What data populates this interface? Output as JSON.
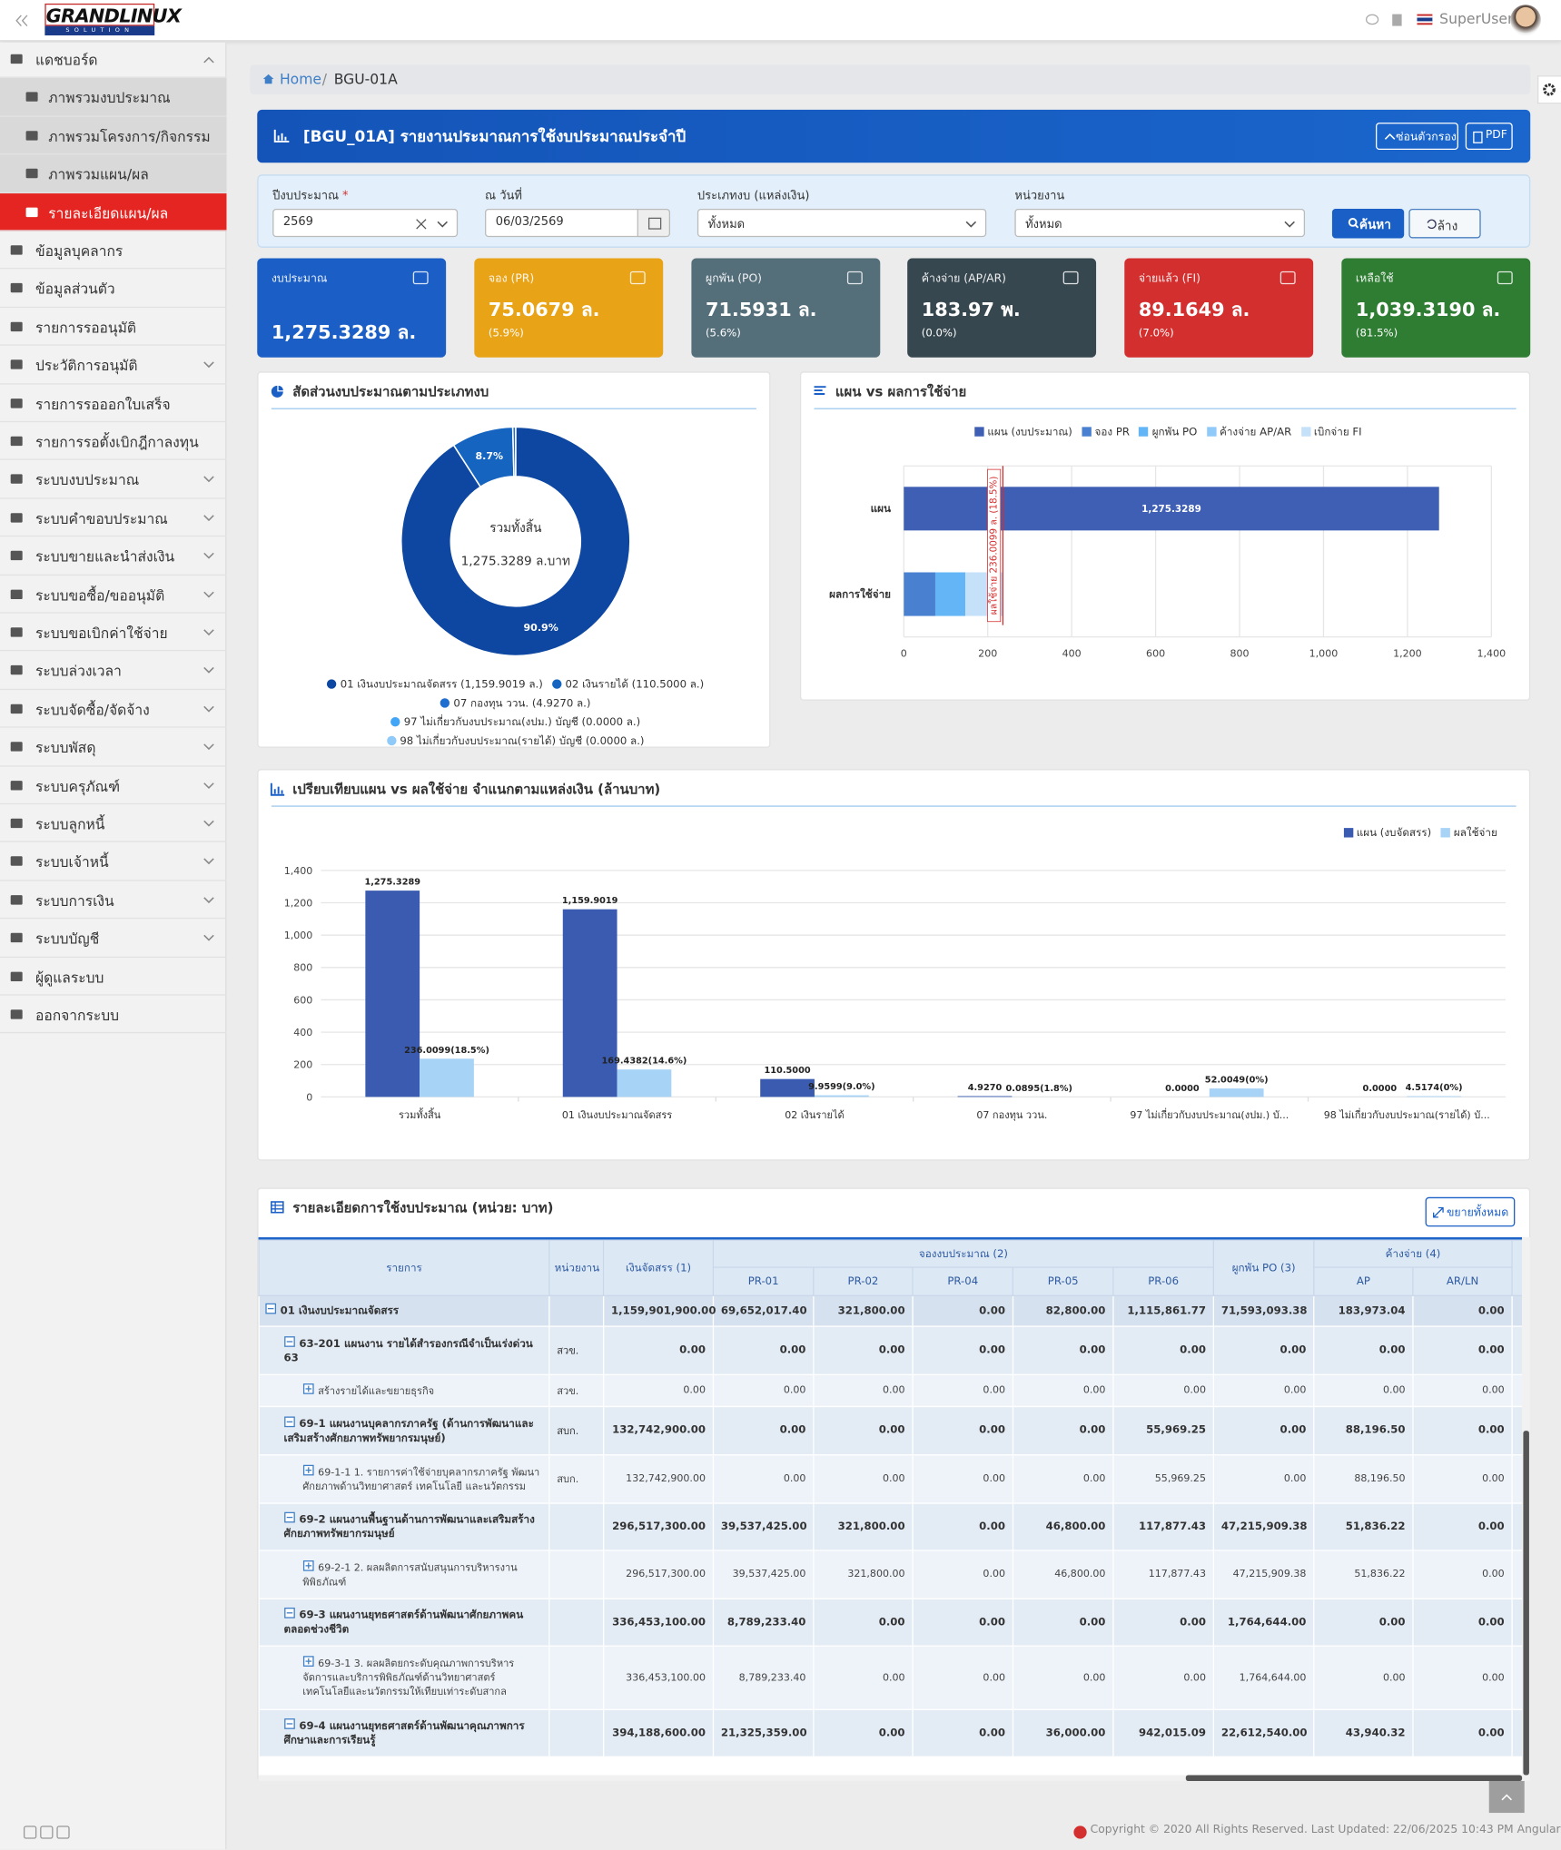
{
  "header": {
    "logo": "GRANDLINUX",
    "logo_sub": "SOLUTION",
    "user": "SuperUser"
  },
  "sidebar": {
    "menu": [
      {
        "label": "แดชบอร์ด",
        "expanded": true,
        "children": [
          {
            "label": "ภาพรวมงบประมาณ"
          },
          {
            "label": "ภาพรวมโครงการ/กิจกรรม"
          },
          {
            "label": "ภาพรวมแผน/ผล"
          },
          {
            "label": "รายละเอียดแผน/ผล",
            "active": true
          }
        ]
      },
      {
        "label": "ข้อมูลบุคลากร"
      },
      {
        "label": "ข้อมูลส่วนตัว"
      },
      {
        "label": "รายการรออนุมัติ"
      },
      {
        "label": "ประวัติการอนุมัติ",
        "submenu": true
      },
      {
        "label": "รายการรอออกใบเสร็จ"
      },
      {
        "label": "รายการรอตั้งเบิกฎีกาลงทุน"
      },
      {
        "label": "ระบบงบประมาณ",
        "submenu": true
      },
      {
        "label": "ระบบคำขอบประมาณ",
        "submenu": true
      },
      {
        "label": "ระบบขายและนำส่งเงิน",
        "submenu": true
      },
      {
        "label": "ระบบขอซื้อ/ขออนุมัติ",
        "submenu": true
      },
      {
        "label": "ระบบขอเบิกค่าใช้จ่าย",
        "submenu": true
      },
      {
        "label": "ระบบล่วงเวลา",
        "submenu": true
      },
      {
        "label": "ระบบจัดซื้อ/จัดจ้าง",
        "submenu": true
      },
      {
        "label": "ระบบพัสดุ",
        "submenu": true
      },
      {
        "label": "ระบบครุภัณฑ์",
        "submenu": true
      },
      {
        "label": "ระบบลูกหนี้",
        "submenu": true
      },
      {
        "label": "ระบบเจ้าหนี้",
        "submenu": true
      },
      {
        "label": "ระบบการเงิน",
        "submenu": true
      },
      {
        "label": "ระบบบัญชี",
        "submenu": true
      },
      {
        "label": "ผู้ดูแลระบบ"
      },
      {
        "label": "ออกจากระบบ"
      }
    ]
  },
  "breadcrumb": {
    "home": "Home",
    "separator": "/",
    "current": "BGU-01A"
  },
  "page_title": "[BGU_01A] รายงานประมาณการใช้งบประมาณประจำปี",
  "buttons": {
    "hide_filter": "ซ่อนตัวกรอง",
    "pdf": "PDF",
    "search": "ค้นหา",
    "clear": "ล้าง",
    "expand_all": "ขยายทั้งหมด"
  },
  "filters": [
    {
      "label": "ปีงบประมาณ",
      "required": "*",
      "value": "2569"
    },
    {
      "label": "ณ วันที่",
      "value": "06/03/2569"
    },
    {
      "label": "ประเภทงบ (แหล่งเงิน)",
      "value": "ทั้งหมด"
    },
    {
      "label": "หน่วยงาน",
      "value": "ทั้งหมด"
    }
  ],
  "kpis": [
    {
      "label": "งบประมาณ",
      "value": "1,275.3289 ล.",
      "color": "#1b5fc6"
    },
    {
      "label": "จอง (PR)",
      "value": "75.0679 ล.",
      "percent": "(5.9%)",
      "color": "#e8a317"
    },
    {
      "label": "ผูกพัน (PO)",
      "value": "71.5931 ล.",
      "percent": "(5.6%)",
      "color": "#546e7a"
    },
    {
      "label": "ค้างจ่าย (AP/AR)",
      "value": "183.97 พ.",
      "percent": "(0.0%)",
      "color": "#37474f"
    },
    {
      "label": "จ่ายแล้ว (FI)",
      "value": "89.1649 ล.",
      "percent": "(7.0%)",
      "color": "#d32f2f"
    },
    {
      "label": "เหลือใช้",
      "value": "1,039.3190 ล.",
      "percent": "(81.5%)",
      "color": "#2e7d32"
    }
  ],
  "chart_data": [
    {
      "type": "pie",
      "title": "สัดส่วนงบประมาณตามประเภทงบ",
      "center_label": "รวมทั้งสิ้น",
      "center_value": "1,275.3289 ล.บาท",
      "labels": [
        "01 เงินงบประมาณจัดสรร (1,159.9019 ล.)",
        "02 เงินรายได้ (110.5000 ล.)",
        "07 กองทุน ววน. (4.9270 ล.)",
        "97 ไม่เกี่ยวกับงบประมาณ(งปม.) บัญชี (0.0000 ล.)",
        "98 ไม่เกี่ยวกับงบประมาณ(รายได้) บัญชี (0.0000 ล.)"
      ],
      "values": [
        90.9,
        8.7,
        0.4,
        0,
        0
      ],
      "value_labels": [
        "90.9%",
        "8.7%",
        null,
        null,
        null
      ],
      "colors": [
        "#0d47a1",
        "#1565c0",
        "#1e6fd0",
        "#42a5f5",
        "#90caf9"
      ]
    },
    {
      "type": "bar",
      "orientation": "horizontal",
      "stacked": true,
      "title": "แผน vs ผลการใช้จ่าย",
      "categories": [
        "แผน",
        "ผลการใช้จ่าย"
      ],
      "series": [
        {
          "name": "แผน (งบประมาณ)",
          "color": "#3f5fb5",
          "values": [
            1275.3289,
            null
          ],
          "value_labels": [
            "1,275.3289",
            null
          ]
        },
        {
          "name": "จอง PR",
          "color": "#4a80d0",
          "values": [
            null,
            75.0679
          ]
        },
        {
          "name": "ผูกพัน PO",
          "color": "#64b5f6",
          "values": [
            null,
            71.5931
          ]
        },
        {
          "name": "ค้างจ่าย AP/AR",
          "color": "#90caf9",
          "values": [
            null,
            0.18397
          ]
        },
        {
          "name": "เบิกจ่าย FI",
          "color": "#c5e1fa",
          "values": [
            null,
            89.1649
          ]
        }
      ],
      "xlim": [
        0,
        1400
      ],
      "xticks": [
        0,
        200,
        400,
        600,
        800,
        {
          "value": 1000,
          "label": "1,000"
        },
        {
          "value": 1200,
          "label": "1,200"
        },
        {
          "value": 1400,
          "label": "1,400"
        }
      ],
      "grid": true,
      "annotation": {
        "text": "ผลใช้จ่าย 236.0099 ล. (18.5%)",
        "value": 236.0099,
        "color": "#d32f2f"
      }
    },
    {
      "type": "bar",
      "orientation": "vertical",
      "title": "เปรียบเทียบแผน vs ผลใช้จ่าย จำแนกตามแหล่งเงิน (ล้านบาท)",
      "legend": "top-right",
      "categories": [
        "รวมทั้งสิ้น",
        "01 เงินงบประมาณจัดสรร",
        "02 เงินรายได้",
        "07 กองทุน ววน.",
        "97 ไม่เกี่ยวกับงบประมาณ(งปม.) บั...",
        "98 ไม่เกี่ยวกับงบประมาณ(รายได้) บั..."
      ],
      "series": [
        {
          "name": "แผน (งบจัดสรร)",
          "color": "#3a5bb0",
          "values": [
            1275.3289,
            1159.9019,
            110.5,
            4.927,
            0,
            0
          ],
          "value_labels": [
            "1,275.3289",
            "1,159.9019",
            "110.5000",
            "4.9270",
            "0.0000",
            "0.0000"
          ]
        },
        {
          "name": "ผลใช้จ่าย",
          "color": "#a7d3f7",
          "values": [
            236.0099,
            169.4382,
            9.9599,
            0.0895,
            52.0049,
            4.5174
          ],
          "value_labels": [
            "236.0099(18.5%)",
            "169.4382(14.6%)",
            "9.9599(9.0%)",
            "0.0895(1.8%)",
            "52.0049(0%)",
            "4.5174(0%)"
          ]
        }
      ],
      "ylim": [
        0,
        1400
      ],
      "yticks": [
        0,
        200,
        400,
        600,
        800,
        {
          "value": 1000,
          "label": "1,000"
        },
        {
          "value": 1200,
          "label": "1,200"
        },
        {
          "value": 1400,
          "label": "1,400"
        }
      ],
      "grid": true
    }
  ],
  "table": {
    "title": "รายละเอียดการใช้งบประมาณ (หน่วย: บาท)",
    "headers": {
      "item": "รายการ",
      "unit": "หน่วยงาน",
      "allocated": "เงินจัดสรร (1)",
      "reserve": "จองงบประมาณ (2)",
      "reserve_sub": [
        "PR-01",
        "PR-02",
        "PR-04",
        "PR-05",
        "PR-06"
      ],
      "po": "ผูกพัน PO (3)",
      "payable": "ค้างจ่าย (4)",
      "payable_sub": [
        "AP",
        "AR/LN"
      ]
    },
    "rows": [
      {
        "label": "01 เงินงบประมาณจัดสรร",
        "level": 0,
        "expanded": true,
        "values": [
          "1,159,901,900.00",
          "69,652,017.40",
          "321,800.00",
          "0.00",
          "82,800.00",
          "1,115,861.77",
          "71,593,093.38",
          "183,973.04",
          "0.00"
        ]
      },
      {
        "label": "63-201 แผนงาน รายได้สำรองกรณีจำเป็นเร่งด่วน 63",
        "unit": "สวข.",
        "level": 1,
        "expanded": true,
        "values": [
          "0.00",
          "0.00",
          "0.00",
          "0.00",
          "0.00",
          "0.00",
          "0.00",
          "0.00",
          "0.00"
        ]
      },
      {
        "label": "สร้างรายได้และขยายธุรกิจ",
        "unit": "สวข.",
        "level": 2,
        "expanded": false,
        "values": [
          "0.00",
          "0.00",
          "0.00",
          "0.00",
          "0.00",
          "0.00",
          "0.00",
          "0.00",
          "0.00"
        ]
      },
      {
        "label": "69-1 แผนงานบุคลากรภาครัฐ (ด้านการพัฒนาและเสริมสร้างศักยภาพทรัพยากรมนุษย์)",
        "unit": "สบก.",
        "level": 1,
        "expanded": true,
        "values": [
          "132,742,900.00",
          "0.00",
          "0.00",
          "0.00",
          "0.00",
          "55,969.25",
          "0.00",
          "88,196.50",
          "0.00"
        ]
      },
      {
        "label": "69-1-1 1. รายการค่าใช้จ่ายบุคลากรภาครัฐ พัฒนาศักยภาพด้านวิทยาศาสตร์ เทคโนโลยี และนวัตกรรม",
        "unit": "สบก.",
        "level": 2,
        "expanded": false,
        "values": [
          "132,742,900.00",
          "0.00",
          "0.00",
          "0.00",
          "0.00",
          "55,969.25",
          "0.00",
          "88,196.50",
          "0.00"
        ]
      },
      {
        "label": "69-2 แผนงานพื้นฐานด้านการพัฒนาและเสริมสร้างศักยภาพทรัพยากรมนุษย์",
        "level": 1,
        "expanded": true,
        "values": [
          "296,517,300.00",
          "39,537,425.00",
          "321,800.00",
          "0.00",
          "46,800.00",
          "117,877.43",
          "47,215,909.38",
          "51,836.22",
          "0.00"
        ]
      },
      {
        "label": "69-2-1 2. ผลผลิตการสนับสนุนการบริหารงานพิพิธภัณฑ์",
        "level": 2,
        "expanded": false,
        "values": [
          "296,517,300.00",
          "39,537,425.00",
          "321,800.00",
          "0.00",
          "46,800.00",
          "117,877.43",
          "47,215,909.38",
          "51,836.22",
          "0.00"
        ]
      },
      {
        "label": "69-3 แผนงานยุทธศาสตร์ด้านพัฒนาศักยภาพคนตลอดช่วงชีวิต",
        "level": 1,
        "expanded": true,
        "values": [
          "336,453,100.00",
          "8,789,233.40",
          "0.00",
          "0.00",
          "0.00",
          "0.00",
          "1,764,644.00",
          "0.00",
          "0.00"
        ]
      },
      {
        "label": "69-3-1 3. ผลผลิตยกระดับคุณภาพการบริหารจัดการและบริการพิพิธภัณฑ์ด้านวิทยาศาสตร์ เทคโนโลยีและนวัตกรรมให้เทียบเท่าระดับสากล",
        "level": 2,
        "expanded": false,
        "values": [
          "336,453,100.00",
          "8,789,233.40",
          "0.00",
          "0.00",
          "0.00",
          "0.00",
          "1,764,644.00",
          "0.00",
          "0.00"
        ]
      },
      {
        "label": "69-4 แผนงานยุทธศาสตร์ด้านพัฒนาคุณภาพการศึกษาและการเรียนรู้",
        "level": 1,
        "expanded": true,
        "values": [
          "394,188,600.00",
          "21,325,359.00",
          "0.00",
          "0.00",
          "36,000.00",
          "942,015.09",
          "22,612,540.00",
          "43,940.32",
          "0.00"
        ]
      }
    ]
  },
  "footer": {
    "copyright": "Copyright © 2020 All Rights Reserved. Last Updated: 22/06/2025 10:43 PM Angular 14.1.0"
  }
}
